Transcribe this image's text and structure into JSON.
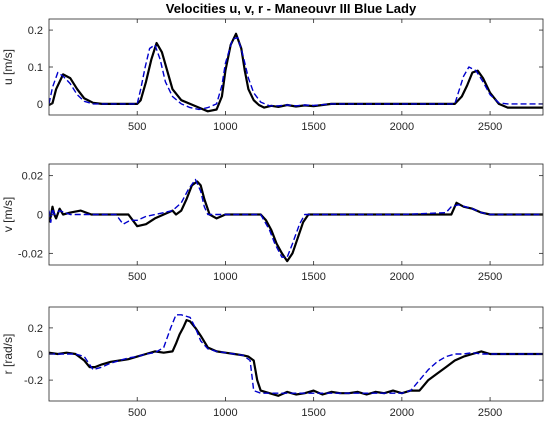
{
  "chart_data": [
    {
      "type": "line",
      "title": "Velocities u, v, r  - Maneouvr III Blue Lady",
      "ylabel": "u [m/s]",
      "xlim": [
        0,
        2800
      ],
      "ylim": [
        -0.03,
        0.23
      ],
      "xticks": [
        500,
        1000,
        1500,
        2000,
        2500
      ],
      "xtick_labels": [
        "500",
        "1000",
        "1500",
        "2000",
        "2500"
      ],
      "yticks": [
        0,
        0.1,
        0.2
      ],
      "ytick_labels": [
        "0",
        "0.1",
        "0.2"
      ],
      "series": [
        {
          "style": "solid",
          "color": "#000000",
          "x": [
            0,
            20,
            40,
            80,
            120,
            160,
            200,
            250,
            300,
            400,
            500,
            520,
            550,
            580,
            610,
            640,
            670,
            700,
            750,
            800,
            850,
            900,
            950,
            980,
            1000,
            1030,
            1060,
            1090,
            1110,
            1130,
            1160,
            1190,
            1220,
            1260,
            1300,
            1350,
            1400,
            1450,
            1500,
            1550,
            1600,
            2000,
            2300,
            2340,
            2370,
            2400,
            2430,
            2460,
            2500,
            2550,
            2600,
            2800
          ],
          "y": [
            -0.003,
            0.002,
            0.04,
            0.08,
            0.07,
            0.04,
            0.015,
            0.003,
            0.0,
            0.0,
            0.0,
            0.01,
            0.06,
            0.12,
            0.165,
            0.14,
            0.09,
            0.04,
            0.01,
            0.0,
            -0.01,
            -0.02,
            -0.015,
            0.02,
            0.09,
            0.16,
            0.19,
            0.15,
            0.09,
            0.04,
            0.01,
            -0.003,
            -0.01,
            -0.005,
            -0.008,
            -0.003,
            -0.007,
            -0.004,
            -0.006,
            -0.003,
            0.0,
            0.0,
            0.0,
            0.02,
            0.05,
            0.085,
            0.09,
            0.07,
            0.03,
            0.0,
            -0.01,
            -0.01
          ]
        },
        {
          "style": "dashed",
          "color": "#0000cc",
          "x": [
            0,
            20,
            50,
            80,
            120,
            160,
            200,
            250,
            300,
            400,
            500,
            520,
            545,
            570,
            600,
            630,
            660,
            700,
            750,
            800,
            850,
            900,
            950,
            980,
            1000,
            1040,
            1070,
            1100,
            1130,
            1160,
            1200,
            1250,
            1300,
            1350,
            1400,
            1450,
            1500,
            1550,
            1600,
            2000,
            2300,
            2320,
            2350,
            2380,
            2420,
            2460,
            2500,
            2550,
            2600,
            2800
          ],
          "y": [
            0.0,
            0.045,
            0.085,
            0.075,
            0.055,
            0.025,
            0.007,
            0.0,
            0.0,
            0.0,
            0.0,
            0.04,
            0.1,
            0.15,
            0.16,
            0.12,
            0.06,
            0.02,
            0.0,
            -0.01,
            -0.015,
            -0.01,
            0.0,
            0.05,
            0.11,
            0.175,
            0.18,
            0.13,
            0.07,
            0.03,
            0.005,
            -0.005,
            -0.005,
            -0.003,
            -0.005,
            -0.003,
            -0.004,
            -0.002,
            0.0,
            0.0,
            0.0,
            0.03,
            0.075,
            0.1,
            0.09,
            0.06,
            0.025,
            0.003,
            0.0,
            0.0
          ]
        }
      ]
    },
    {
      "type": "line",
      "ylabel": "v [m/s]",
      "xlim": [
        0,
        2800
      ],
      "ylim": [
        -0.026,
        0.026
      ],
      "xticks": [
        500,
        1000,
        1500,
        2000,
        2500
      ],
      "xtick_labels": [
        "500",
        "1000",
        "1500",
        "2000",
        "2500"
      ],
      "yticks": [
        -0.02,
        0,
        0.02
      ],
      "ytick_labels": [
        "-0.02",
        "0",
        "0.02"
      ],
      "series": [
        {
          "style": "solid",
          "color": "#000000",
          "x": [
            0,
            10,
            20,
            30,
            40,
            60,
            80,
            120,
            180,
            240,
            300,
            400,
            450,
            500,
            550,
            600,
            650,
            700,
            720,
            750,
            780,
            810,
            840,
            860,
            880,
            910,
            950,
            1000,
            1100,
            1200,
            1230,
            1260,
            1290,
            1320,
            1350,
            1380,
            1410,
            1440,
            1470,
            1520,
            1600,
            2000,
            2200,
            2280,
            2310,
            2350,
            2400,
            2450,
            2500,
            2550,
            2800
          ],
          "y": [
            -0.004,
            -0.001,
            0.004,
            0.0,
            -0.002,
            0.003,
            0.0,
            0.001,
            0.002,
            0.0,
            0.0,
            0.0,
            0.0,
            -0.006,
            -0.005,
            -0.002,
            0.0,
            0.002,
            0.0,
            0.002,
            0.008,
            0.015,
            0.017,
            0.015,
            0.008,
            0.0,
            -0.002,
            0.0,
            0.0,
            0.0,
            -0.003,
            -0.008,
            -0.015,
            -0.02,
            -0.024,
            -0.02,
            -0.012,
            -0.004,
            0.0,
            0.0,
            0.0,
            0.0,
            0.0,
            0.0,
            0.006,
            0.004,
            0.003,
            0.001,
            0.0,
            0.0,
            0.0
          ]
        },
        {
          "style": "dashed",
          "color": "#0000cc",
          "x": [
            0,
            10,
            20,
            30,
            60,
            120,
            200,
            300,
            380,
            420,
            460,
            500,
            550,
            600,
            650,
            700,
            750,
            790,
            830,
            860,
            880,
            900,
            950,
            1000,
            1100,
            1200,
            1250,
            1280,
            1320,
            1350,
            1380,
            1420,
            1450,
            1500,
            2000,
            2250,
            2280,
            2320,
            2400,
            2450,
            2500,
            2800
          ],
          "y": [
            0.002,
            -0.004,
            0.003,
            0.0,
            0.002,
            0.0,
            0.0,
            0.0,
            0.0,
            -0.005,
            -0.003,
            -0.003,
            -0.001,
            0.0,
            0.001,
            0.002,
            0.006,
            0.013,
            0.018,
            0.012,
            0.004,
            0.0,
            0.0,
            0.0,
            0.0,
            0.0,
            -0.008,
            -0.015,
            -0.022,
            -0.022,
            -0.015,
            -0.005,
            0.0,
            0.0,
            0.0,
            0.001,
            0.004,
            0.005,
            0.003,
            0.001,
            0.0,
            0.0
          ]
        }
      ]
    },
    {
      "type": "line",
      "ylabel": "r [rad/s]",
      "xlim": [
        0,
        2800
      ],
      "ylim": [
        -0.36,
        0.36
      ],
      "xticks": [
        500,
        1000,
        1500,
        2000,
        2500
      ],
      "xtick_labels": [
        "500",
        "1000",
        "1500",
        "2000",
        "2500"
      ],
      "yticks": [
        -0.2,
        0,
        0.2
      ],
      "ytick_labels": [
        "-0.2",
        "0",
        "0.2"
      ],
      "series": [
        {
          "style": "solid",
          "color": "#000000",
          "x": [
            0,
            50,
            100,
            150,
            200,
            230,
            260,
            300,
            350,
            400,
            450,
            500,
            550,
            600,
            650,
            700,
            720,
            740,
            760,
            780,
            800,
            830,
            860,
            900,
            950,
            1000,
            1050,
            1100,
            1130,
            1160,
            1180,
            1200,
            1250,
            1300,
            1350,
            1400,
            1450,
            1500,
            1550,
            1600,
            1650,
            1700,
            1750,
            1800,
            1850,
            1900,
            1950,
            2000,
            2050,
            2100,
            2150,
            2200,
            2250,
            2300,
            2350,
            2400,
            2450,
            2500,
            2800
          ],
          "y": [
            0.01,
            0.0,
            0.01,
            0.0,
            -0.05,
            -0.1,
            -0.1,
            -0.08,
            -0.06,
            -0.05,
            -0.04,
            -0.02,
            0.0,
            0.02,
            0.01,
            0.02,
            0.08,
            0.15,
            0.2,
            0.26,
            0.25,
            0.2,
            0.14,
            0.05,
            0.02,
            0.01,
            0.0,
            -0.01,
            -0.02,
            -0.05,
            -0.2,
            -0.28,
            -0.3,
            -0.32,
            -0.29,
            -0.31,
            -0.3,
            -0.28,
            -0.31,
            -0.29,
            -0.3,
            -0.3,
            -0.29,
            -0.31,
            -0.29,
            -0.3,
            -0.28,
            -0.3,
            -0.28,
            -0.28,
            -0.2,
            -0.15,
            -0.1,
            -0.05,
            -0.02,
            0.0,
            0.02,
            0.0,
            0.0
          ]
        },
        {
          "style": "dashed",
          "color": "#0000cc",
          "x": [
            0,
            50,
            150,
            200,
            250,
            300,
            350,
            400,
            450,
            500,
            550,
            600,
            650,
            690,
            720,
            750,
            800,
            830,
            860,
            900,
            950,
            1000,
            1050,
            1100,
            1140,
            1160,
            1200,
            1250,
            1300,
            2000,
            2050,
            2100,
            2150,
            2200,
            2250,
            2300,
            2350,
            2400,
            2450,
            2800
          ],
          "y": [
            0.0,
            0.0,
            0.0,
            -0.02,
            -0.12,
            -0.1,
            -0.07,
            -0.05,
            -0.03,
            -0.02,
            0.0,
            0.01,
            0.05,
            0.2,
            0.3,
            0.3,
            0.28,
            0.2,
            0.1,
            0.04,
            0.02,
            0.01,
            0.0,
            -0.01,
            -0.05,
            -0.28,
            -0.3,
            -0.3,
            -0.3,
            -0.3,
            -0.28,
            -0.2,
            -0.12,
            -0.06,
            -0.02,
            0.0,
            0.0,
            0.01,
            0.0,
            0.0
          ]
        }
      ]
    }
  ]
}
